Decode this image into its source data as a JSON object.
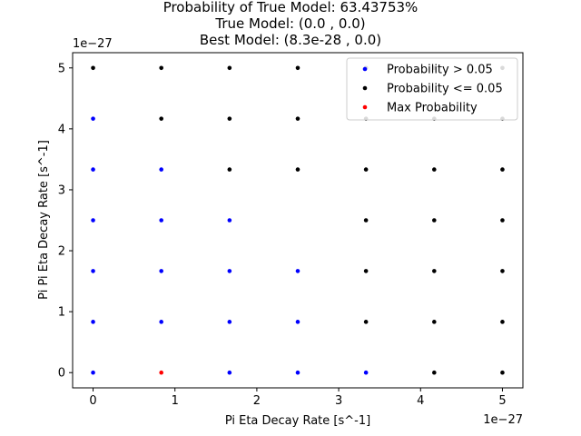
{
  "chart_data": {
    "type": "scatter",
    "title_lines": [
      "Probability of True Model: 63.43753%",
      "True Model: (0.0 , 0.0)",
      "Best Model: (8.3e-28 , 0.0)"
    ],
    "xlabel": "Pi Eta Decay Rate [s^-1]",
    "ylabel": "Pi Pi Eta Decay Rate [s^-1]",
    "x_offset_label": "1e−27",
    "y_offset_label": "1e−27",
    "scale": 1e-27,
    "xlim": [
      -0.25,
      5.25
    ],
    "ylim": [
      -0.25,
      5.25
    ],
    "xticks": [
      0,
      1,
      2,
      3,
      4,
      5
    ],
    "yticks": [
      0,
      1,
      2,
      3,
      4,
      5
    ],
    "xtick_labels": [
      "0",
      "1",
      "2",
      "3",
      "4",
      "5"
    ],
    "ytick_labels": [
      "0",
      "1",
      "2",
      "3",
      "4",
      "5"
    ],
    "grid": false,
    "legend_position": "upper right",
    "series": [
      {
        "name": "Probability > 0.05",
        "color": "#0000ff",
        "points": [
          [
            0,
            0
          ],
          [
            0,
            0.8333
          ],
          [
            0,
            1.6667
          ],
          [
            0,
            2.5
          ],
          [
            0,
            3.3333
          ],
          [
            0,
            4.1667
          ],
          [
            0.8333,
            0.8333
          ],
          [
            0.8333,
            1.6667
          ],
          [
            0.8333,
            2.5
          ],
          [
            0.8333,
            3.3333
          ],
          [
            1.6667,
            0
          ],
          [
            1.6667,
            0.8333
          ],
          [
            1.6667,
            1.6667
          ],
          [
            1.6667,
            2.5
          ],
          [
            2.5,
            0
          ],
          [
            2.5,
            0.8333
          ],
          [
            2.5,
            1.6667
          ],
          [
            3.3333,
            0
          ]
        ]
      },
      {
        "name": "Probability <= 0.05",
        "color": "#000000",
        "points": [
          [
            0,
            5
          ],
          [
            0.8333,
            4.1667
          ],
          [
            0.8333,
            5
          ],
          [
            1.6667,
            3.3333
          ],
          [
            1.6667,
            4.1667
          ],
          [
            1.6667,
            5
          ],
          [
            2.5,
            3.3333
          ],
          [
            2.5,
            4.1667
          ],
          [
            2.5,
            5
          ],
          [
            3.3333,
            0.8333
          ],
          [
            3.3333,
            1.6667
          ],
          [
            3.3333,
            2.5
          ],
          [
            3.3333,
            3.3333
          ],
          [
            3.3333,
            4.1667
          ],
          [
            3.3333,
            5
          ],
          [
            4.1667,
            0
          ],
          [
            4.1667,
            0.8333
          ],
          [
            4.1667,
            1.6667
          ],
          [
            4.1667,
            2.5
          ],
          [
            4.1667,
            3.3333
          ],
          [
            4.1667,
            4.1667
          ],
          [
            4.1667,
            5
          ],
          [
            5,
            0
          ],
          [
            5,
            0.8333
          ],
          [
            5,
            1.6667
          ],
          [
            5,
            2.5
          ],
          [
            5,
            3.3333
          ],
          [
            5,
            4.1667
          ],
          [
            5,
            5
          ]
        ]
      },
      {
        "name": "Max Probability",
        "color": "#ff0000",
        "points": [
          [
            0.8333,
            0
          ]
        ]
      }
    ]
  }
}
